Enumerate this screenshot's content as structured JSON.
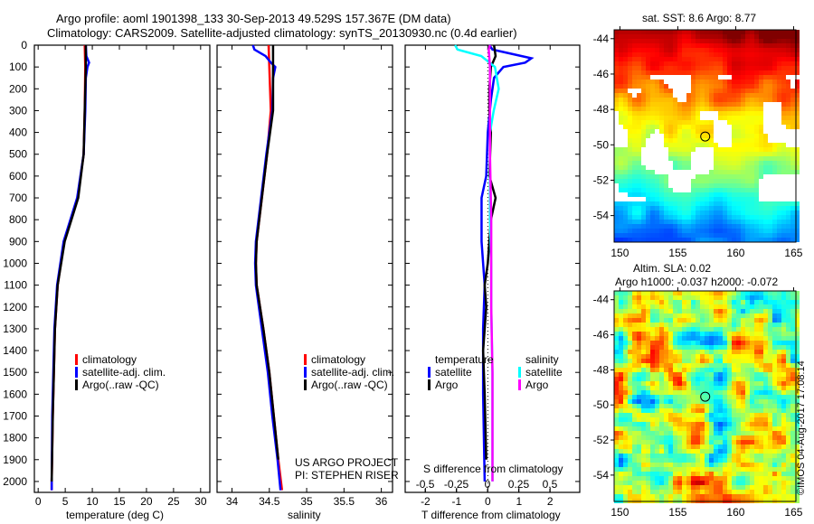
{
  "header": {
    "title1": "Argo profile: aoml 1901398_133 30-Sep-2013 49.529S 157.367E (DM data)",
    "title2": "Climatology: CARS2009. Satellite-adjusted climatology: synTS_20130930.nc (0.4d earlier)"
  },
  "chart_data": [
    {
      "type": "line",
      "name": "temperature",
      "xlabel": "temperature (deg C)",
      "ylabel": "depth",
      "xlim": [
        -0.7,
        31.7
      ],
      "ylim": [
        2050,
        0
      ],
      "xticks": [
        0,
        5,
        10,
        15,
        20,
        25,
        30
      ],
      "yticks": [
        0,
        100,
        200,
        300,
        400,
        500,
        600,
        700,
        800,
        900,
        1000,
        1100,
        1200,
        1300,
        1400,
        1500,
        1600,
        1700,
        1800,
        1900,
        2000
      ],
      "legend": [
        "climatology",
        "satellite-adj. clim.",
        "Argo(..raw -QC)"
      ],
      "legend_placement": "lower-right",
      "series": [
        {
          "name": "climatology",
          "color": "#ff0000",
          "depth": [
            0,
            100,
            300,
            500,
            700,
            900,
            1100,
            1300,
            1500,
            1700,
            2000,
            2040
          ],
          "values": [
            8.6,
            8.7,
            8.6,
            8.4,
            7.3,
            4.8,
            3.6,
            3.1,
            2.9,
            2.7,
            2.5,
            2.5
          ]
        },
        {
          "name": "satellite-adj. clim.",
          "color": "#0000ff",
          "depth": [
            0,
            50,
            80,
            100,
            150,
            300,
            500,
            700,
            900,
            1100,
            1300,
            1500,
            1700,
            2000,
            2040
          ],
          "values": [
            8.8,
            8.9,
            9.4,
            9.1,
            8.8,
            8.7,
            8.4,
            7.2,
            4.7,
            3.5,
            3.0,
            2.8,
            2.6,
            2.5,
            2.5
          ]
        },
        {
          "name": "Argo(..raw -QC)",
          "color": "#000000",
          "depth": [
            0,
            100,
            300,
            500,
            700,
            900,
            1100,
            1300,
            1500,
            1700,
            2000
          ],
          "values": [
            8.8,
            8.8,
            8.6,
            8.4,
            7.4,
            4.9,
            3.6,
            3.1,
            2.9,
            2.7,
            2.5
          ]
        }
      ]
    },
    {
      "type": "line",
      "name": "salinity",
      "xlabel": "salinity",
      "xlim": [
        33.8,
        36.15
      ],
      "ylim": [
        2050,
        0
      ],
      "xticks": [
        34,
        34.5,
        35,
        35.5,
        36
      ],
      "legend": [
        "climatology",
        "satellite-adj. clim.",
        "Argo(..raw -QC)"
      ],
      "legend_placement": "lower-right",
      "annotation": [
        "US ARGO PROJECT",
        "PI: STEPHEN RISER"
      ],
      "series": [
        {
          "name": "climatology",
          "color": "#ff0000",
          "depth": [
            0,
            100,
            300,
            500,
            700,
            900,
            1000,
            1100,
            1300,
            1500,
            1700,
            1900,
            2040
          ],
          "values": [
            34.49,
            34.5,
            34.52,
            34.47,
            34.4,
            34.33,
            34.32,
            34.33,
            34.42,
            34.5,
            34.56,
            34.62,
            34.67
          ]
        },
        {
          "name": "satellite-adj. clim.",
          "color": "#0000ff",
          "depth": [
            0,
            20,
            50,
            80,
            100,
            150,
            300,
            500,
            700,
            900,
            1000,
            1100,
            1300,
            1500,
            1700,
            1900,
            2040
          ],
          "values": [
            34.28,
            34.3,
            34.45,
            34.52,
            34.58,
            34.55,
            34.54,
            34.46,
            34.39,
            34.32,
            34.31,
            34.32,
            34.4,
            34.48,
            34.54,
            34.61,
            34.65
          ]
        },
        {
          "name": "Argo(..raw -QC)",
          "color": "#000000",
          "depth": [
            0,
            100,
            300,
            500,
            700,
            900,
            1000,
            1100,
            1300,
            1500,
            1700,
            1900
          ],
          "values": [
            34.55,
            34.55,
            34.55,
            34.47,
            34.4,
            34.33,
            34.32,
            34.33,
            34.42,
            34.5,
            34.56,
            34.62
          ]
        }
      ]
    },
    {
      "type": "line",
      "name": "differences",
      "xlabel": "T difference from climatology",
      "xlabel2": "S difference from climatology",
      "xlim": [
        -2.65,
        2.95
      ],
      "xlim_s": [
        -0.66,
        0.74
      ],
      "xticks": [
        -2,
        -1,
        0,
        1,
        2
      ],
      "xticks_s": [
        -0.5,
        -0.25,
        0,
        0.25,
        0.5
      ],
      "xtick_labels_s": [
        "-0.5",
        "-0.25",
        "0",
        "0.25",
        "0.5"
      ],
      "legend_temp_title": "temperature",
      "legend_sal_title": "salinity",
      "legend": [
        "satellite",
        "Argo",
        "satellite",
        "Argo"
      ],
      "series": [
        {
          "name": "T satellite",
          "color": "#0000ff",
          "depth": [
            0,
            20,
            60,
            80,
            100,
            150,
            250,
            400,
            600,
            700,
            900,
            1100,
            1300,
            1600,
            2000
          ],
          "values": [
            0.05,
            0.15,
            1.4,
            1.2,
            0.5,
            0.2,
            0.1,
            0.0,
            -0.05,
            -0.2,
            -0.2,
            -0.1,
            -0.15,
            -0.15,
            -0.1
          ]
        },
        {
          "name": "T Argo",
          "color": "#000000",
          "depth": [
            0,
            50,
            100,
            200,
            300,
            400,
            600,
            700,
            800,
            1000,
            1100,
            1200,
            1400,
            1600,
            1900
          ],
          "values": [
            0.2,
            0.25,
            0.1,
            0.05,
            0.05,
            0.1,
            0.05,
            0.25,
            0.1,
            0.0,
            -0.1,
            -0.05,
            -0.15,
            -0.1,
            -0.05
          ]
        },
        {
          "name": "S satellite",
          "color": "#00ffff",
          "depth": [
            0,
            20,
            50,
            100,
            200,
            300,
            400,
            600,
            800,
            1000,
            1200,
            1500,
            1800,
            2000
          ],
          "values": [
            -0.26,
            -0.24,
            -0.05,
            0.06,
            0.09,
            0.05,
            0.02,
            0.02,
            0.02,
            0.03,
            0.03,
            0.04,
            0.04,
            0.04
          ]
        },
        {
          "name": "S Argo",
          "color": "#ff00ff",
          "depth": [
            0,
            20,
            100,
            300,
            500,
            800,
            1000,
            1200,
            1500,
            1800,
            2000
          ],
          "values": [
            0.02,
            0.01,
            0.02,
            0.02,
            0.02,
            0.03,
            0.03,
            0.03,
            0.04,
            0.04,
            0.04
          ]
        }
      ]
    },
    {
      "type": "heatmap",
      "name": "sst-map",
      "title": "sat. SST: 8.6 Argo: 8.77",
      "xticks": [
        150,
        155,
        160,
        165
      ],
      "yticks": [
        -44,
        -46,
        -48,
        -50,
        -52,
        -54
      ],
      "xlim": [
        149.5,
        165.2
      ],
      "ylim": [
        -55.5,
        -43.5
      ],
      "marker": [
        157.367,
        -49.529
      ]
    },
    {
      "type": "heatmap",
      "name": "sla-map",
      "title1": "Altim. SLA: 0.02",
      "title2": "Argo h1000: -0.037 h2000: -0.072",
      "xticks": [
        150,
        155,
        160,
        165
      ],
      "yticks": [
        -44,
        -46,
        -48,
        -50,
        -52,
        -54
      ],
      "xlim": [
        149.5,
        165.2
      ],
      "ylim": [
        -55.5,
        -43.5
      ],
      "marker": [
        157.367,
        -49.529
      ],
      "credit": "©IMOS 04-Aug-2017 17:08:14"
    }
  ]
}
